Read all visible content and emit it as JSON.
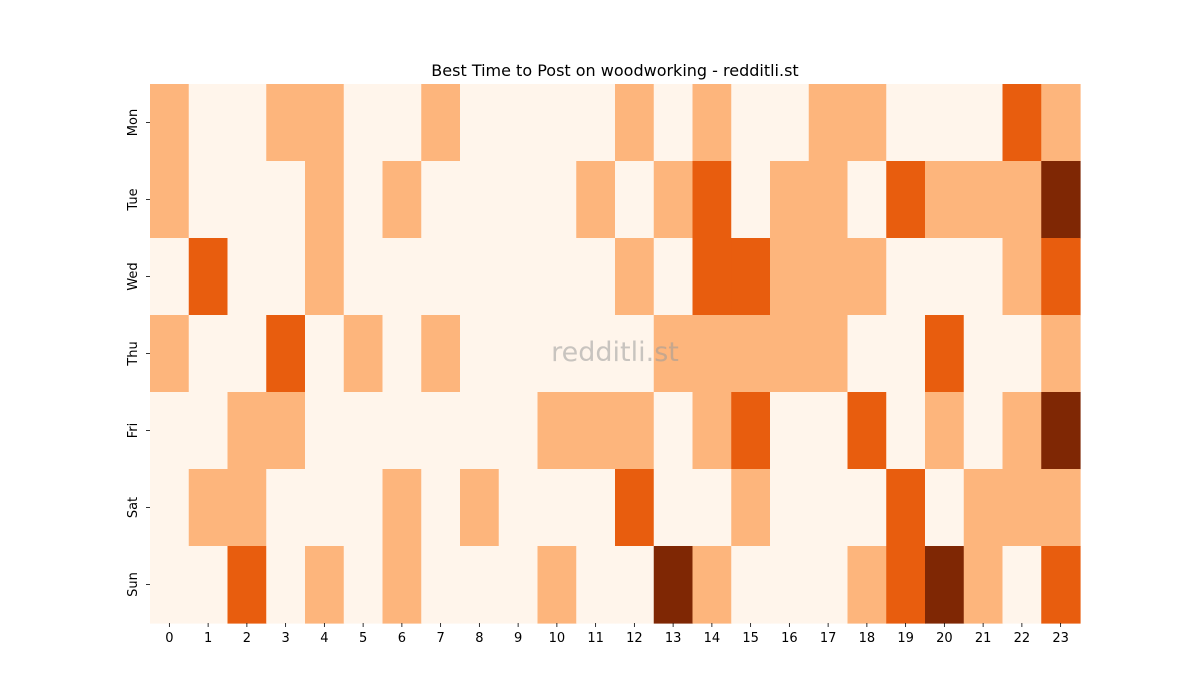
{
  "chart_data": {
    "type": "heatmap",
    "title": "Best Time to Post on woodworking - redditli.st",
    "xlabel": "",
    "ylabel": "",
    "x_categories": [
      "0",
      "1",
      "2",
      "3",
      "4",
      "5",
      "6",
      "7",
      "8",
      "9",
      "10",
      "11",
      "12",
      "13",
      "14",
      "15",
      "16",
      "17",
      "18",
      "19",
      "20",
      "21",
      "22",
      "23"
    ],
    "y_categories": [
      "Mon",
      "Tue",
      "Wed",
      "Thu",
      "Fri",
      "Sat",
      "Sun"
    ],
    "values": [
      [
        1,
        0,
        0,
        1,
        1,
        0,
        0,
        1,
        0,
        0,
        0,
        0,
        1,
        0,
        1,
        0,
        0,
        1,
        1,
        0,
        0,
        0,
        2,
        1
      ],
      [
        1,
        0,
        0,
        0,
        1,
        0,
        1,
        0,
        0,
        0,
        0,
        1,
        0,
        1,
        2,
        0,
        1,
        1,
        0,
        2,
        1,
        1,
        1,
        3
      ],
      [
        0,
        2,
        0,
        0,
        1,
        0,
        0,
        0,
        0,
        0,
        0,
        0,
        1,
        0,
        2,
        2,
        1,
        1,
        1,
        0,
        0,
        0,
        1,
        2
      ],
      [
        1,
        0,
        0,
        2,
        0,
        1,
        0,
        1,
        0,
        0,
        0,
        0,
        0,
        1,
        1,
        1,
        1,
        1,
        0,
        0,
        2,
        0,
        0,
        1
      ],
      [
        0,
        0,
        1,
        1,
        0,
        0,
        0,
        0,
        0,
        0,
        1,
        1,
        1,
        0,
        1,
        2,
        0,
        0,
        2,
        0,
        1,
        0,
        1,
        3
      ],
      [
        0,
        1,
        1,
        0,
        0,
        0,
        1,
        0,
        1,
        0,
        0,
        0,
        2,
        0,
        0,
        1,
        0,
        0,
        0,
        2,
        0,
        1,
        1,
        1
      ],
      [
        0,
        0,
        2,
        0,
        1,
        0,
        1,
        0,
        0,
        0,
        1,
        0,
        0,
        3,
        1,
        0,
        0,
        0,
        1,
        2,
        3,
        1,
        0,
        2
      ]
    ],
    "color_scale": [
      "#fff5eb",
      "#fdb57c",
      "#e85d0e",
      "#7f2704"
    ],
    "colorbar": false,
    "grid": false,
    "watermark": "redditli.st"
  }
}
